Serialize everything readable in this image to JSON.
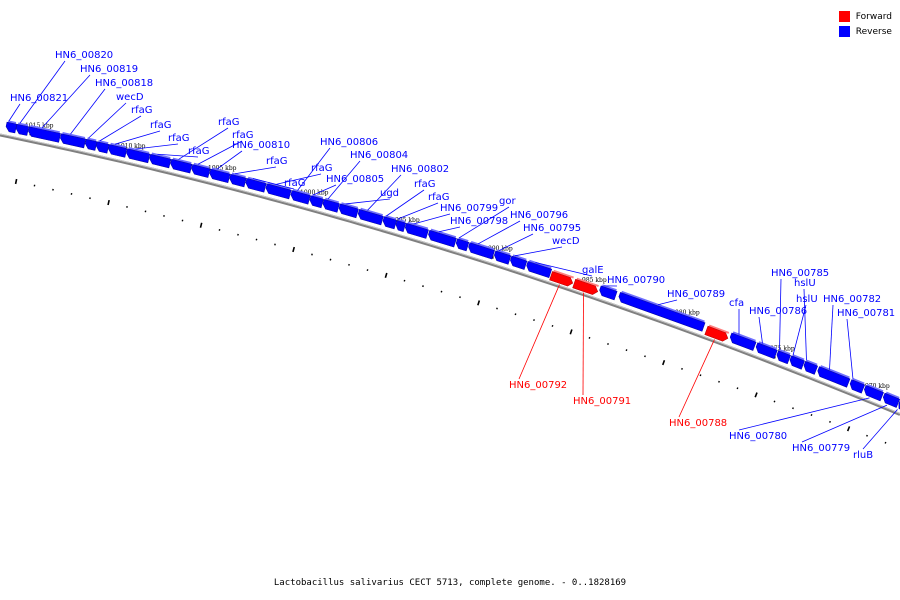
{
  "caption": "Lactobacillus salivarius CECT 5713, complete genome. - 0..1828169",
  "legend": [
    {
      "label": "Forward",
      "color": "#ff0000"
    },
    {
      "label": "Reverse",
      "color": "#0000ff"
    }
  ],
  "colors": {
    "forward": "#ff0000",
    "reverse": "#0000ff",
    "backbone": "#808080"
  },
  "ticks": [
    "1015 kbp",
    "1010 kbp",
    "1005 kbp",
    "1000 kbp",
    "995 kbp",
    "990 kbp",
    "985 kbp",
    "980 kbp",
    "975 kbp",
    "970 kbp"
  ],
  "genes": [
    {
      "label": "HN6_00821",
      "strand": "reverse"
    },
    {
      "label": "HN6_00820",
      "strand": "reverse"
    },
    {
      "label": "HN6_00819",
      "strand": "reverse"
    },
    {
      "label": "HN6_00818",
      "strand": "reverse"
    },
    {
      "label": "wecD",
      "strand": "reverse"
    },
    {
      "label": "rfaG",
      "strand": "reverse"
    },
    {
      "label": "rfaG",
      "strand": "reverse"
    },
    {
      "label": "rfaG",
      "strand": "reverse"
    },
    {
      "label": "rfaG",
      "strand": "reverse"
    },
    {
      "label": "rfaG",
      "strand": "reverse"
    },
    {
      "label": "rfaG",
      "strand": "reverse"
    },
    {
      "label": "HN6_00810",
      "strand": "reverse"
    },
    {
      "label": "rfaG",
      "strand": "reverse"
    },
    {
      "label": "rfaG",
      "strand": "reverse"
    },
    {
      "label": "rfaG",
      "strand": "reverse"
    },
    {
      "label": "HN6_00806",
      "strand": "reverse"
    },
    {
      "label": "HN6_00805",
      "strand": "reverse"
    },
    {
      "label": "HN6_00804",
      "strand": "reverse"
    },
    {
      "label": "ugd",
      "strand": "reverse"
    },
    {
      "label": "HN6_00802",
      "strand": "reverse"
    },
    {
      "label": "rfaG",
      "strand": "reverse"
    },
    {
      "label": "rfaG",
      "strand": "reverse"
    },
    {
      "label": "HN6_00799",
      "strand": "reverse"
    },
    {
      "label": "HN6_00798",
      "strand": "reverse"
    },
    {
      "label": "gor",
      "strand": "reverse"
    },
    {
      "label": "HN6_00796",
      "strand": "reverse"
    },
    {
      "label": "HN6_00795",
      "strand": "reverse"
    },
    {
      "label": "wecD",
      "strand": "reverse"
    },
    {
      "label": "galE",
      "strand": "reverse"
    },
    {
      "label": "HN6_00792",
      "strand": "forward"
    },
    {
      "label": "HN6_00791",
      "strand": "forward"
    },
    {
      "label": "HN6_00790",
      "strand": "reverse"
    },
    {
      "label": "HN6_00789",
      "strand": "reverse"
    },
    {
      "label": "HN6_00788",
      "strand": "forward"
    },
    {
      "label": "cfa",
      "strand": "reverse"
    },
    {
      "label": "HN6_00786",
      "strand": "reverse"
    },
    {
      "label": "HN6_00785",
      "strand": "reverse"
    },
    {
      "label": "hslU",
      "strand": "reverse"
    },
    {
      "label": "hslU",
      "strand": "reverse"
    },
    {
      "label": "HN6_00782",
      "strand": "reverse"
    },
    {
      "label": "HN6_00781",
      "strand": "reverse"
    },
    {
      "label": "HN6_00780",
      "strand": "reverse"
    },
    {
      "label": "HN6_00779",
      "strand": "reverse"
    },
    {
      "label": "rluB",
      "strand": "reverse"
    }
  ]
}
